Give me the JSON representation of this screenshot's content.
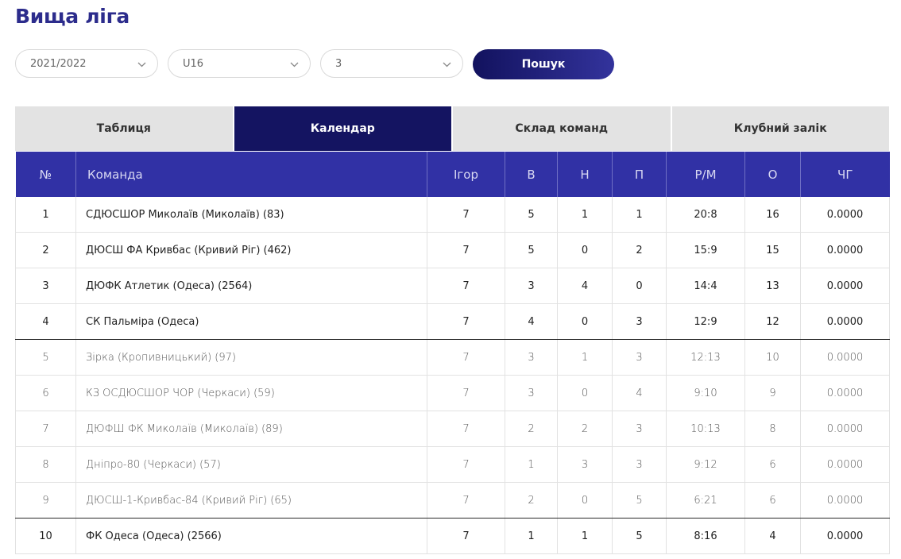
{
  "page": {
    "title": "Вища ліга"
  },
  "filters": {
    "season": "2021/2022",
    "age_group": "U16",
    "group": "3",
    "search_label": "Пошук"
  },
  "tabs": [
    {
      "label": "Таблиця",
      "active": false
    },
    {
      "label": "Календар",
      "active": true
    },
    {
      "label": "Склад команд",
      "active": false
    },
    {
      "label": "Клубний залік",
      "active": false
    }
  ],
  "table": {
    "headers": [
      "№",
      "Команда",
      "Ігор",
      "В",
      "Н",
      "П",
      "Р/М",
      "О",
      "ЧГ"
    ],
    "rows": [
      {
        "num": "1",
        "team": "СДЮСШОР Миколаїв (Миколаїв) (83)",
        "games": "7",
        "w": "5",
        "d": "1",
        "l": "1",
        "goals": "20:8",
        "pts": "16",
        "chg": "0.0000"
      },
      {
        "num": "2",
        "team": "ДЮСШ ФА Кривбас (Кривий Ріг) (462)",
        "games": "7",
        "w": "5",
        "d": "0",
        "l": "2",
        "goals": "15:9",
        "pts": "15",
        "chg": "0.0000"
      },
      {
        "num": "3",
        "team": "ДЮФК Атлетик (Одеса) (2564)",
        "games": "7",
        "w": "3",
        "d": "4",
        "l": "0",
        "goals": "14:4",
        "pts": "13",
        "chg": "0.0000"
      },
      {
        "num": "4",
        "team": "СК Пальміра (Одеса)",
        "games": "7",
        "w": "4",
        "d": "0",
        "l": "3",
        "goals": "12:9",
        "pts": "12",
        "chg": "0.0000"
      },
      {
        "num": "5",
        "team": "Зірка (Кропивницький) (97)",
        "games": "7",
        "w": "3",
        "d": "1",
        "l": "3",
        "goals": "12:13",
        "pts": "10",
        "chg": "0.0000"
      },
      {
        "num": "6",
        "team": "КЗ ОСДЮСШОР ЧОР (Черкаси) (59)",
        "games": "7",
        "w": "3",
        "d": "0",
        "l": "4",
        "goals": "9:10",
        "pts": "9",
        "chg": "0.0000"
      },
      {
        "num": "7",
        "team": "ДЮФШ ФК Миколаїв (Миколаїв) (89)",
        "games": "7",
        "w": "2",
        "d": "2",
        "l": "3",
        "goals": "10:13",
        "pts": "8",
        "chg": "0.0000"
      },
      {
        "num": "8",
        "team": "Дніпро-80 (Черкаси) (57)",
        "games": "7",
        "w": "1",
        "d": "3",
        "l": "3",
        "goals": "9:12",
        "pts": "6",
        "chg": "0.0000"
      },
      {
        "num": "9",
        "team": "ДЮСШ-1-Кривбас-84 (Кривий Ріг) (65)",
        "games": "7",
        "w": "2",
        "d": "0",
        "l": "5",
        "goals": "6:21",
        "pts": "6",
        "chg": "0.0000"
      },
      {
        "num": "10",
        "team": "ФК Одеса (Одеса) (2566)",
        "games": "7",
        "w": "1",
        "d": "1",
        "l": "5",
        "goals": "8:16",
        "pts": "4",
        "chg": "0.0000"
      }
    ]
  },
  "colors": {
    "title": "#2c2c8c",
    "header_bg": "#3131a5",
    "active_tab_bg": "#141461",
    "tab_bg": "#e3e3e3"
  },
  "icons": {
    "select_chevron": "chevron-down-icon"
  }
}
